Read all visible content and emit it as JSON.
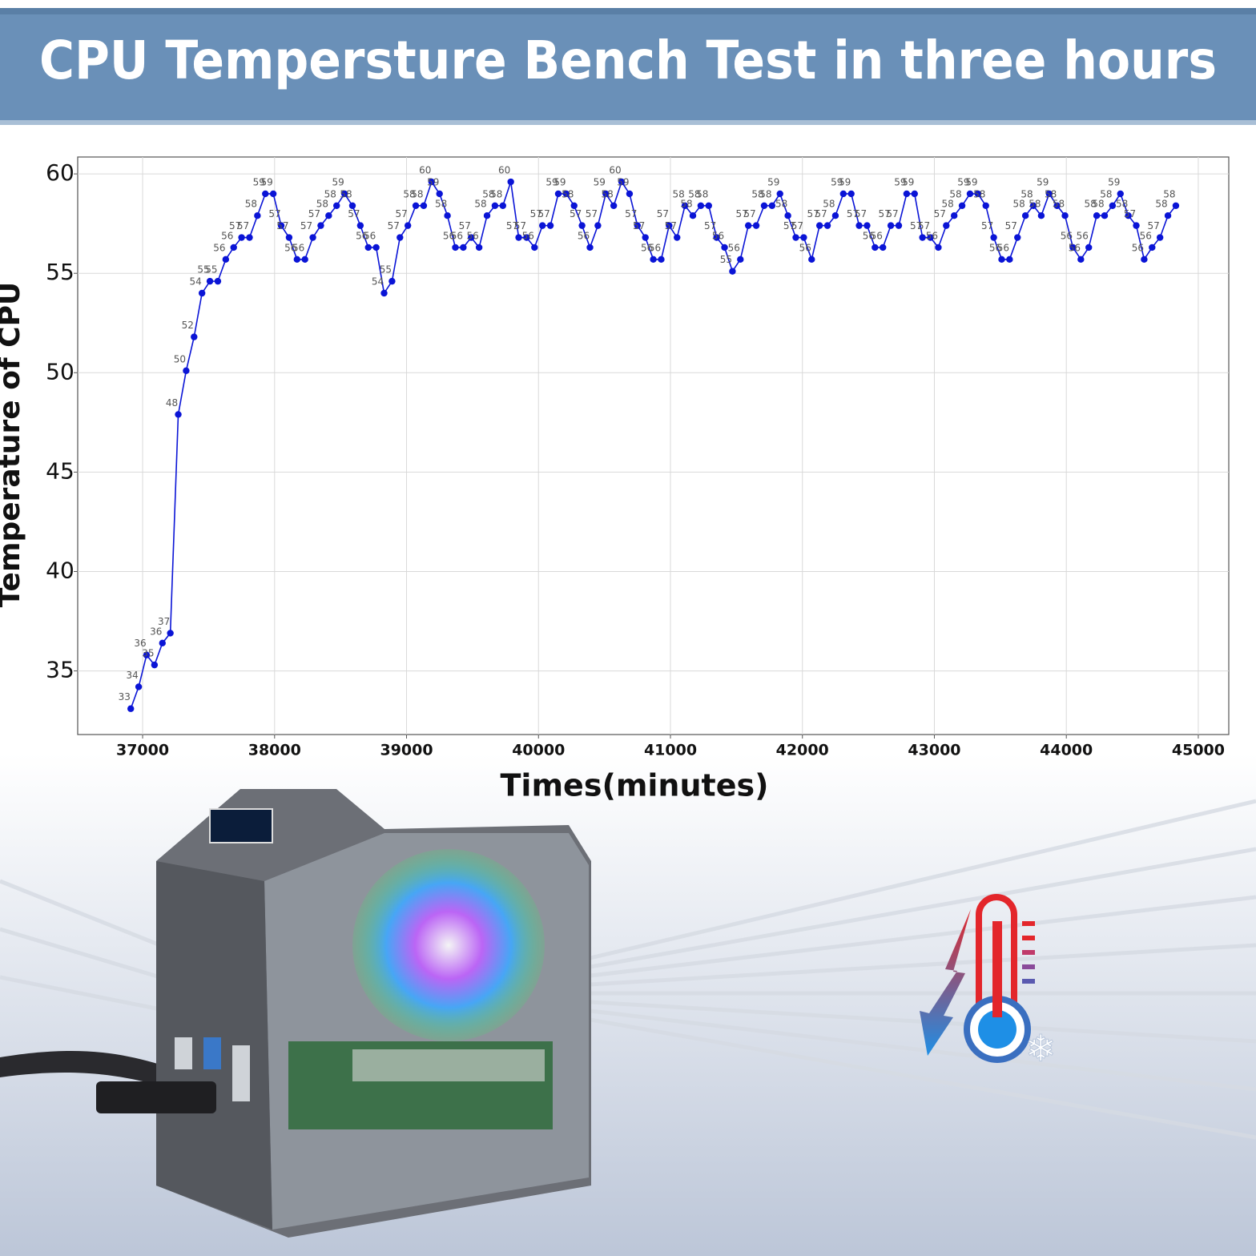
{
  "chart_data": {
    "type": "line",
    "title": "CPU Tempersture Bench Test in three hours",
    "x_label": "Times(minutes)",
    "y_label": "Temperature of CPU",
    "color": "#0a14d6",
    "grid": true,
    "xlim": [
      36508,
      45231
    ],
    "ylim": [
      31.8,
      60.85
    ],
    "xticks": [
      37000,
      38000,
      39000,
      40000,
      41000,
      42000,
      43000,
      44000,
      45000
    ],
    "yticks": [
      35,
      40,
      45,
      50,
      55,
      60
    ],
    "x": [
      36910,
      36970,
      37030,
      37090,
      37150,
      37210,
      37270,
      37330,
      37390,
      37450,
      37510,
      37570,
      37630,
      37690,
      37750,
      37810,
      37870,
      37930,
      37990,
      38050,
      38110,
      38170,
      38230,
      38290,
      38350,
      38410,
      38470,
      38530,
      38590,
      38650,
      38710,
      38770,
      38830,
      38890,
      38950,
      39010,
      39070,
      39130,
      39190,
      39250,
      39310,
      39370,
      39430,
      39490,
      39550,
      39610,
      39670,
      39730,
      39790,
      39850,
      39910,
      39970,
      40030,
      40090,
      40150,
      40210,
      40270,
      40330,
      40390,
      40450,
      40510,
      40570,
      40630,
      40690,
      40750,
      40810,
      40870,
      40930,
      40990,
      41050,
      41110,
      41170,
      41230,
      41290,
      41350,
      41410,
      41470,
      41530,
      41590,
      41650,
      41710,
      41770,
      41830,
      41890,
      41950,
      42010,
      42070,
      42130,
      42190,
      42250,
      42310,
      42370,
      42430,
      42490,
      42550,
      42610,
      42670,
      42730,
      42790,
      42850,
      42910,
      42970,
      43030,
      43090,
      43150,
      43210,
      43270,
      43330,
      43390,
      43450,
      43510,
      43570,
      43630,
      43690,
      43750,
      43810,
      43870,
      43930,
      43990,
      44050,
      44110,
      44170,
      44230,
      44290,
      44350,
      44410,
      44470,
      44530,
      44590,
      44650,
      44710,
      44770,
      44830
    ],
    "values": [
      33.1,
      34.2,
      35.8,
      35.3,
      36.4,
      36.9,
      47.9,
      50.1,
      51.8,
      54.0,
      54.6,
      54.6,
      55.7,
      56.3,
      56.8,
      56.8,
      57.9,
      59.0,
      59.0,
      57.4,
      56.8,
      55.7,
      55.7,
      56.8,
      57.4,
      57.9,
      58.4,
      59.0,
      58.4,
      57.4,
      56.3,
      56.3,
      54.0,
      54.6,
      56.8,
      57.4,
      58.4,
      58.4,
      59.6,
      59.0,
      57.9,
      56.3,
      56.3,
      56.8,
      56.3,
      57.9,
      58.4,
      58.4,
      59.6,
      56.8,
      56.8,
      56.3,
      57.4,
      57.4,
      59.0,
      59.0,
      58.4,
      57.4,
      56.3,
      57.4,
      59.0,
      58.4,
      59.6,
      59.0,
      57.4,
      56.8,
      55.7,
      55.7,
      57.4,
      56.8,
      58.4,
      57.9,
      58.4,
      58.4,
      56.8,
      56.3,
      55.1,
      55.7,
      57.4,
      57.4,
      58.4,
      58.4,
      59.0,
      57.9,
      56.8,
      56.8,
      55.7,
      57.4,
      57.4,
      57.9,
      59.0,
      59.0,
      57.4,
      57.4,
      56.3,
      56.3,
      57.4,
      57.4,
      59.0,
      59.0,
      56.8,
      56.8,
      56.3,
      57.4,
      57.9,
      58.4,
      59.0,
      59.0,
      58.4,
      56.8,
      55.7,
      55.7,
      56.8,
      57.9,
      58.4,
      57.9,
      59.0,
      58.4,
      57.9,
      56.3,
      55.7,
      56.3,
      57.9,
      57.9,
      58.4,
      59.0,
      57.9,
      57.4,
      55.7,
      56.3,
      56.8,
      57.9,
      58.4
    ],
    "value_labels": [
      "33",
      "34",
      "36",
      "35",
      "36",
      "37",
      "48",
      "50",
      "52",
      "54",
      "55",
      "55",
      "56",
      "56",
      "57",
      "57",
      "58",
      "59",
      "59",
      "57",
      "57",
      "56",
      "56",
      "57",
      "57",
      "58",
      "58",
      "59",
      "58",
      "57",
      "56",
      "56",
      "54",
      "55",
      "57",
      "57",
      "58",
      "58",
      "60",
      "59",
      "58",
      "56",
      "56",
      "57",
      "56",
      "58",
      "58",
      "58",
      "60",
      "57",
      "57",
      "56",
      "57",
      "57",
      "59",
      "59",
      "58",
      "57",
      "56",
      "57",
      "59",
      "58",
      "60",
      "59",
      "57",
      "57",
      "56",
      "56",
      "57",
      "57",
      "58",
      "58",
      "58",
      "58",
      "57",
      "56",
      "55",
      "56",
      "57",
      "57",
      "58",
      "58",
      "59",
      "58",
      "57",
      "57",
      "56",
      "57",
      "57",
      "58",
      "59",
      "59",
      "57",
      "57",
      "56",
      "56",
      "57",
      "57",
      "59",
      "59",
      "57",
      "57",
      "56",
      "57",
      "58",
      "58",
      "59",
      "59",
      "58",
      "57",
      "56",
      "56",
      "57",
      "58",
      "58",
      "58",
      "59",
      "58",
      "58",
      "56",
      "56",
      "56",
      "58",
      "58",
      "58",
      "59",
      "58",
      "57",
      "56",
      "56",
      "57",
      "58",
      "58"
    ]
  }
}
